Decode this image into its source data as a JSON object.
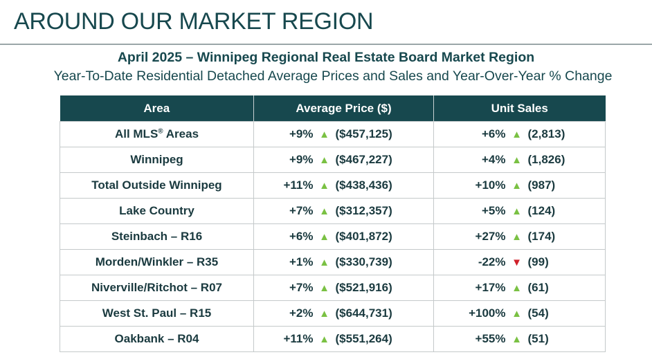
{
  "header": {
    "title": "AROUND OUR MARKET REGION",
    "subtitle": "April 2025 – Winnipeg Regional Real Estate Board Market Region",
    "description": "Year-To-Date Residential Detached Average Prices and Sales and Year-Over-Year % Change"
  },
  "table": {
    "columns": [
      "Area",
      "Average Price ($)",
      "Unit Sales"
    ],
    "colors": {
      "header_bg": "#17484e",
      "up": "#7ac143",
      "down": "#d0202a"
    },
    "rows": [
      {
        "area": "All MLS",
        "area_sup": "®",
        "area_suffix": " Areas",
        "price_change": "+9%",
        "price_dir": "up",
        "price": "($457,125)",
        "sales_change": "+6%",
        "sales_dir": "up",
        "sales": "(2,813)"
      },
      {
        "area": "Winnipeg",
        "area_sup": "",
        "area_suffix": "",
        "price_change": "+9%",
        "price_dir": "up",
        "price": "($467,227)",
        "sales_change": "+4%",
        "sales_dir": "up",
        "sales": "(1,826)"
      },
      {
        "area": "Total Outside Winnipeg",
        "area_sup": "",
        "area_suffix": "",
        "price_change": "+11%",
        "price_dir": "up",
        "price": "($438,436)",
        "sales_change": "+10%",
        "sales_dir": "up",
        "sales": "(987)"
      },
      {
        "area": "Lake Country",
        "area_sup": "",
        "area_suffix": "",
        "price_change": "+7%",
        "price_dir": "up",
        "price": "($312,357)",
        "sales_change": "+5%",
        "sales_dir": "up",
        "sales": "(124)"
      },
      {
        "area": "Steinbach – R16",
        "area_sup": "",
        "area_suffix": "",
        "price_change": "+6%",
        "price_dir": "up",
        "price": "($401,872)",
        "sales_change": "+27%",
        "sales_dir": "up",
        "sales": "(174)"
      },
      {
        "area": "Morden/Winkler – R35",
        "area_sup": "",
        "area_suffix": "",
        "price_change": "+1%",
        "price_dir": "up",
        "price": "($330,739)",
        "sales_change": "-22%",
        "sales_dir": "down",
        "sales": "(99)"
      },
      {
        "area": "Niverville/Ritchot – R07",
        "area_sup": "",
        "area_suffix": "",
        "price_change": "+7%",
        "price_dir": "up",
        "price": "($521,916)",
        "sales_change": "+17%",
        "sales_dir": "up",
        "sales": "(61)"
      },
      {
        "area": "West St. Paul – R15",
        "area_sup": "",
        "area_suffix": "",
        "price_change": "+2%",
        "price_dir": "up",
        "price": "($644,731)",
        "sales_change": "+100%",
        "sales_dir": "up",
        "sales": "(54)"
      },
      {
        "area": "Oakbank – R04",
        "area_sup": "",
        "area_suffix": "",
        "price_change": "+11%",
        "price_dir": "up",
        "price": "($551,264)",
        "sales_change": "+55%",
        "sales_dir": "up",
        "sales": "(51)"
      }
    ]
  }
}
